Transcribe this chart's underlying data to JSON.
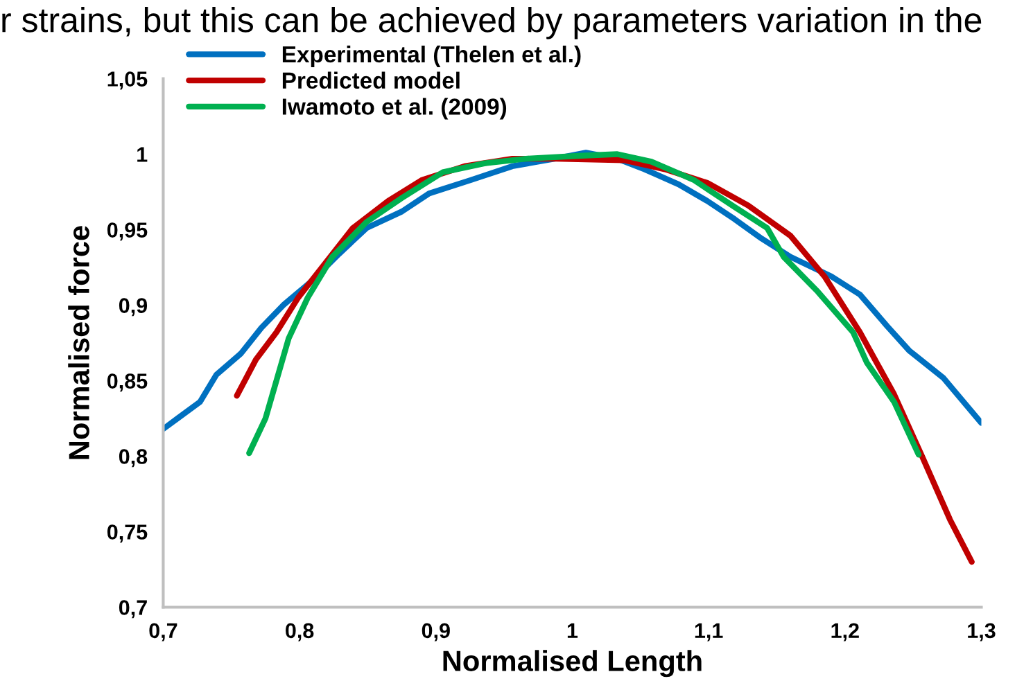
{
  "chart_data": {
    "type": "line",
    "xlabel": "Normalised Length",
    "ylabel": "Normalised force",
    "annotations": [
      "r strains, but this can be achieved by parameters variation in the"
    ],
    "xlim": [
      0.7,
      1.3
    ],
    "xticks": [
      {
        "value": 0.7,
        "label": "0,7"
      },
      {
        "value": 0.8,
        "label": "0,8"
      },
      {
        "value": 0.9,
        "label": "0,9"
      },
      {
        "value": 1,
        "label": "1"
      },
      {
        "value": 1.1,
        "label": "1,1"
      },
      {
        "value": 1.2,
        "label": "1,2"
      },
      {
        "value": 1.3,
        "label": "1,3"
      }
    ],
    "ylim": [
      0.7,
      1.05
    ],
    "yticks": [
      {
        "value": 0.7,
        "label": "0,7"
      },
      {
        "value": 0.75,
        "label": "0,75"
      },
      {
        "value": 0.8,
        "label": "0,8"
      },
      {
        "value": 0.85,
        "label": "0,85"
      },
      {
        "value": 0.9,
        "label": "0,9"
      },
      {
        "value": 0.95,
        "label": "0,95"
      },
      {
        "value": 1,
        "label": "1"
      },
      {
        "value": 1.05,
        "label": "1,05"
      }
    ],
    "grid": false,
    "legend": "top left",
    "marker": "none",
    "line_style": "solid",
    "series": [
      {
        "name": "Experimental (Thelen et al.)",
        "color": "#0070c0",
        "x": [
          0.7,
          0.727,
          0.739,
          0.757,
          0.772,
          0.788,
          0.809,
          0.829,
          0.849,
          0.875,
          0.895,
          0.926,
          0.956,
          0.987,
          1.01,
          1.033,
          1.053,
          1.078,
          1.099,
          1.119,
          1.139,
          1.16,
          1.19,
          1.211,
          1.231,
          1.247,
          1.272,
          1.3
        ],
        "values": [
          0.818,
          0.836,
          0.854,
          0.868,
          0.885,
          0.9,
          0.916,
          0.934,
          0.951,
          0.962,
          0.974,
          0.983,
          0.992,
          0.997,
          1.001,
          0.997,
          0.99,
          0.98,
          0.969,
          0.957,
          0.944,
          0.932,
          0.919,
          0.907,
          0.886,
          0.87,
          0.852,
          0.822
        ]
      },
      {
        "name": "Predicted model",
        "color": "#c00000",
        "x": [
          0.754,
          0.768,
          0.783,
          0.799,
          0.819,
          0.839,
          0.865,
          0.89,
          0.921,
          0.956,
          0.987,
          1.038,
          1.068,
          1.099,
          1.129,
          1.16,
          1.185,
          1.211,
          1.236,
          1.257,
          1.277,
          1.293
        ],
        "values": [
          0.84,
          0.864,
          0.882,
          0.905,
          0.928,
          0.951,
          0.969,
          0.983,
          0.992,
          0.997,
          0.997,
          0.996,
          0.99,
          0.981,
          0.966,
          0.946,
          0.919,
          0.882,
          0.841,
          0.799,
          0.758,
          0.73
        ]
      },
      {
        "name": "Iwamoto et al. (2009)",
        "color": "#00b050",
        "x": [
          0.763,
          0.775,
          0.792,
          0.806,
          0.824,
          0.849,
          0.875,
          0.905,
          0.936,
          0.966,
          1.007,
          1.033,
          1.058,
          1.089,
          1.119,
          1.143,
          1.155,
          1.18,
          1.206,
          1.216,
          1.236,
          1.254
        ],
        "values": [
          0.802,
          0.825,
          0.878,
          0.905,
          0.932,
          0.955,
          0.971,
          0.988,
          0.994,
          0.997,
          0.999,
          1.0,
          0.995,
          0.983,
          0.965,
          0.951,
          0.932,
          0.909,
          0.882,
          0.862,
          0.836,
          0.801
        ]
      }
    ]
  }
}
